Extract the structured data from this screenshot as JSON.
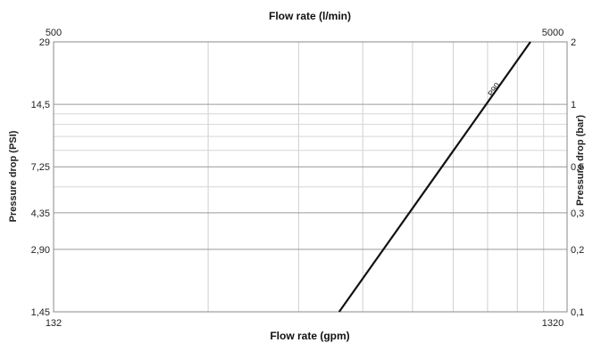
{
  "chart_data": {
    "type": "line",
    "title_top": "Flow rate (l/min)",
    "xlabel": "Flow rate (gpm)",
    "ylabel_left": "Pressure drop (PSI)",
    "ylabel_right": "Pressure drop (bar)",
    "x_scale": "log",
    "y_scale": "log",
    "xlim_gpm": [
      132,
      1320
    ],
    "xlim_lpm": [
      500,
      5000
    ],
    "ylim_psi": [
      1.45,
      29
    ],
    "ylim_bar": [
      0.1,
      2
    ],
    "x_ticks_bottom": [
      "132",
      "1320"
    ],
    "x_ticks_top": [
      "500",
      "5000"
    ],
    "y_ticks_left": [
      "1,45",
      "2,90",
      "4,35",
      "7,25",
      "14,5",
      "29"
    ],
    "y_ticks_right": [
      "0,1",
      "0,2",
      "0,3",
      "0,5",
      "1",
      "2"
    ],
    "grid": true,
    "series": [
      {
        "name": "P90",
        "x_gpm": [
          475,
          1120
        ],
        "y_psi": [
          1.45,
          29
        ]
      }
    ]
  }
}
